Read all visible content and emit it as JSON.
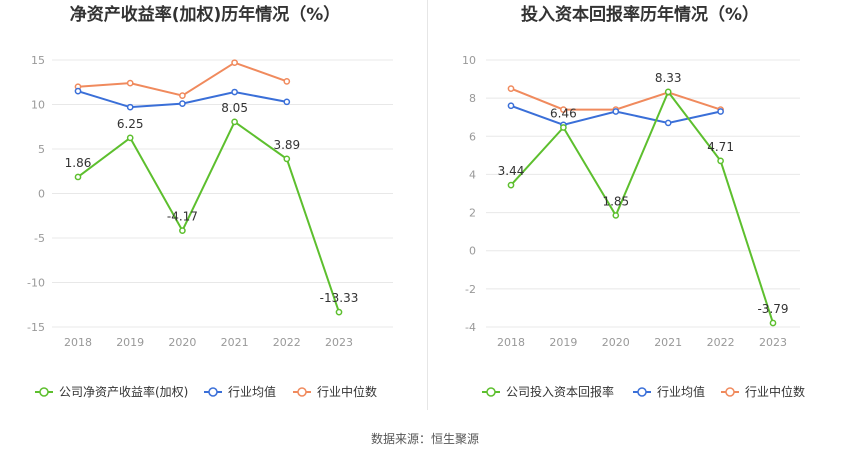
{
  "colors": {
    "company": "#5dbf2e",
    "industry_avg": "#3a6fd8",
    "industry_median": "#f08a5d",
    "grid": "#e8e8e8",
    "axis_text": "#999999",
    "label_text": "#333333"
  },
  "legend": {
    "company_roe": "公司净资产收益率(加权)",
    "company_roic": "公司投入资本回报率",
    "industry_avg": "行业均值",
    "industry_median": "行业中位数"
  },
  "source": "数据来源：恒生聚源",
  "chart_data": [
    {
      "type": "line",
      "title": "净资产收益率(加权)历年情况（%）",
      "categories": [
        "2018",
        "2019",
        "2020",
        "2021",
        "2022",
        "2023"
      ],
      "ylim": [
        -15,
        15
      ],
      "yticks": [
        15,
        10,
        5,
        0,
        -5,
        -10,
        -15
      ],
      "grid": true,
      "legend_position": "bottom",
      "series": [
        {
          "name": "公司净资产收益率(加权)",
          "color": "#5dbf2e",
          "values": [
            1.86,
            6.25,
            -4.17,
            8.05,
            3.89,
            -13.33
          ],
          "labels": [
            "1.86",
            "6.25",
            "-4.17",
            "8.05",
            "3.89",
            "-13.33"
          ]
        },
        {
          "name": "行业均值",
          "color": "#3a6fd8",
          "values": [
            11.5,
            9.7,
            10.1,
            11.4,
            10.3,
            null
          ]
        },
        {
          "name": "行业中位数",
          "color": "#f08a5d",
          "values": [
            12.0,
            12.4,
            11.0,
            14.7,
            12.6,
            null
          ]
        }
      ]
    },
    {
      "type": "line",
      "title": "投入资本回报率历年情况（%）",
      "categories": [
        "2018",
        "2019",
        "2020",
        "2021",
        "2022",
        "2023"
      ],
      "ylim": [
        -4,
        10
      ],
      "yticks": [
        10,
        8,
        6,
        4,
        2,
        0,
        -2,
        -4
      ],
      "grid": true,
      "legend_position": "bottom",
      "series": [
        {
          "name": "公司投入资本回报率",
          "color": "#5dbf2e",
          "values": [
            3.44,
            6.46,
            1.85,
            8.33,
            4.71,
            -3.79
          ],
          "labels": [
            "3.44",
            "6.46",
            "1.85",
            "8.33",
            "4.71",
            "-3.79"
          ]
        },
        {
          "name": "行业均值",
          "color": "#3a6fd8",
          "values": [
            7.6,
            6.6,
            7.3,
            6.7,
            7.3,
            null
          ]
        },
        {
          "name": "行业中位数",
          "color": "#f08a5d",
          "values": [
            8.5,
            7.4,
            7.4,
            8.3,
            7.4,
            null
          ]
        }
      ]
    }
  ]
}
